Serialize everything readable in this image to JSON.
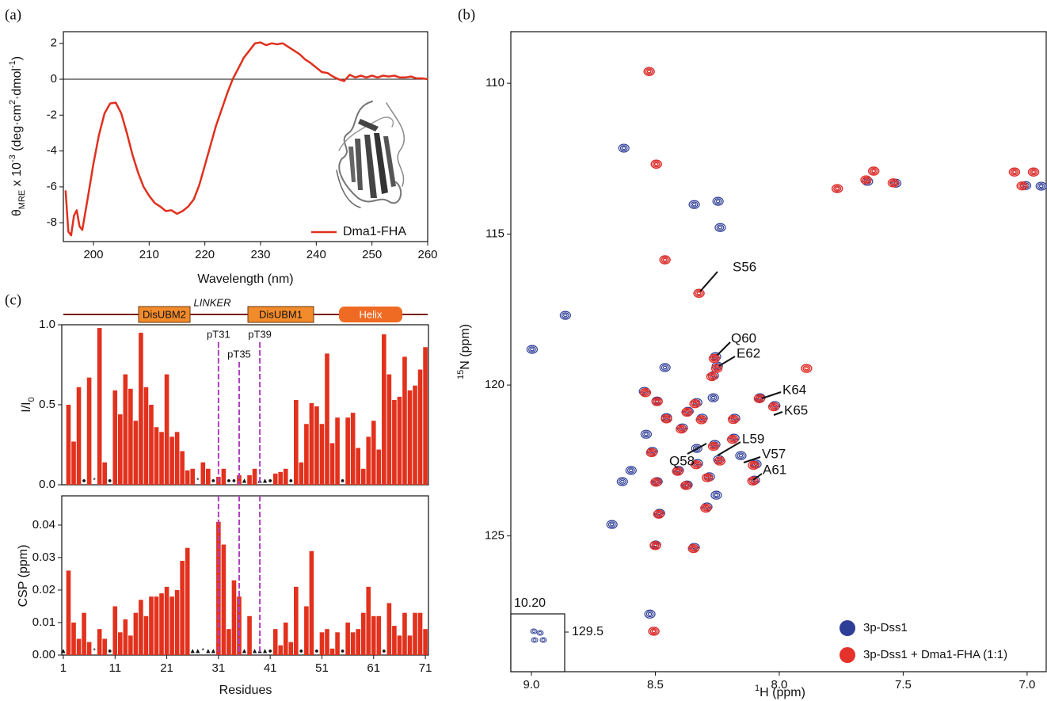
{
  "panel_labels": [
    "(a)",
    "(b)",
    "(c)"
  ],
  "domain_map": {
    "labels": [
      "DisUBM2",
      "LINKER",
      "DisUBM1",
      "Helix"
    ]
  },
  "chart_data": [
    {
      "type": "line",
      "x_label": [
        {
          "text": "Wavelength (nm)"
        }
      ],
      "y_label": [
        {
          "text": "θ"
        },
        {
          "text": "MRE",
          "shift": "sub"
        },
        {
          "text": " x 10"
        },
        {
          "text": "-3",
          "shift": "sup"
        },
        {
          "text": " (deg·cm"
        },
        {
          "text": "2",
          "shift": "sup"
        },
        {
          "text": "·dmol"
        },
        {
          "text": "-1",
          "shift": "sup"
        },
        {
          "text": ")"
        }
      ],
      "x": [
        195,
        195.5,
        196,
        196.5,
        197,
        197.5,
        198,
        199,
        200,
        201,
        202,
        203,
        204,
        205,
        206,
        207,
        208,
        209,
        210,
        211,
        212,
        213,
        214,
        215,
        216,
        217,
        218,
        219,
        220,
        221,
        222,
        223,
        224,
        225,
        226,
        227,
        228,
        229,
        230,
        231,
        232,
        233,
        234,
        235,
        236,
        237,
        238,
        239,
        240,
        241,
        242,
        243,
        244,
        245,
        246,
        247,
        248,
        249,
        250,
        251,
        252,
        253,
        254,
        255,
        256,
        257,
        258,
        259,
        260
      ],
      "series": [
        {
          "name": "Dma1-FHA",
          "color": "#e0301e",
          "values": [
            -6.2,
            -8.5,
            -8.7,
            -7.6,
            -7.3,
            -8.2,
            -8.4,
            -6.6,
            -4.7,
            -3.1,
            -1.9,
            -1.35,
            -1.3,
            -1.9,
            -3.0,
            -4.2,
            -5.2,
            -6.0,
            -6.5,
            -6.9,
            -7.1,
            -7.35,
            -7.3,
            -7.5,
            -7.35,
            -7.1,
            -6.7,
            -5.9,
            -4.8,
            -3.7,
            -2.6,
            -1.7,
            -0.8,
            0.0,
            0.6,
            1.2,
            1.6,
            2.0,
            2.05,
            1.9,
            2.0,
            1.95,
            2.0,
            1.8,
            1.6,
            1.4,
            1.1,
            0.9,
            0.65,
            0.4,
            0.35,
            0.15,
            0.0,
            -0.1,
            0.25,
            0.1,
            0.2,
            0.1,
            0.2,
            0.1,
            0.2,
            0.15,
            0.2,
            0.1,
            0.1,
            0.15,
            0.05,
            0.05,
            0.0
          ]
        }
      ],
      "xlim": [
        194.6,
        260
      ],
      "ylim": [
        -9.05,
        2.65
      ],
      "xticks": [
        200,
        210,
        220,
        230,
        240,
        250,
        260
      ],
      "yticks": [
        -8,
        -6,
        -4,
        -2,
        0,
        2
      ],
      "legend": "lower right"
    },
    {
      "type": "bar",
      "y_label": [
        {
          "text": "I/I"
        },
        {
          "text": "0",
          "shift": "sub"
        }
      ],
      "color": "#e2311d",
      "x": [
        1,
        2,
        3,
        4,
        5,
        6,
        7,
        8,
        9,
        10,
        11,
        12,
        13,
        14,
        15,
        16,
        17,
        18,
        19,
        20,
        21,
        22,
        23,
        24,
        25,
        26,
        27,
        28,
        29,
        30,
        31,
        32,
        33,
        34,
        35,
        36,
        37,
        38,
        39,
        40,
        41,
        42,
        43,
        44,
        45,
        46,
        47,
        48,
        49,
        50,
        51,
        52,
        53,
        54,
        55,
        56,
        57,
        58,
        59,
        60,
        61,
        62,
        63,
        64,
        65,
        66,
        67,
        68,
        69,
        70,
        71
      ],
      "values": [
        null,
        0.5,
        0.27,
        0.61,
        null,
        0.67,
        null,
        0.98,
        0.14,
        null,
        0.59,
        0.44,
        0.69,
        0.6,
        0.4,
        0.95,
        0.61,
        0.5,
        0.36,
        0.33,
        0.69,
        0.3,
        0.33,
        0.21,
        0.09,
        0.1,
        null,
        0.14,
        0.1,
        null,
        0.05,
        0.1,
        null,
        null,
        0.06,
        null,
        0.06,
        0.1,
        null,
        null,
        null,
        0.07,
        0.08,
        0.1,
        null,
        0.53,
        0.14,
        0.38,
        0.51,
        0.49,
        0.38,
        0.82,
        0.26,
        0.42,
        null,
        0.42,
        0.45,
        0.23,
        0.1,
        0.3,
        0.4,
        0.22,
        0.94,
        0.69,
        0.53,
        0.55,
        0.8,
        0.59,
        0.62,
        0.72,
        0.86
      ],
      "symbols": [
        null,
        null,
        null,
        null,
        "●",
        null,
        "*",
        null,
        null,
        "●",
        null,
        null,
        null,
        null,
        null,
        null,
        null,
        null,
        null,
        null,
        null,
        null,
        null,
        null,
        null,
        null,
        "*",
        null,
        null,
        "●",
        null,
        null,
        "●",
        "●",
        null,
        "▲",
        null,
        null,
        "▲",
        "▲",
        "●",
        null,
        null,
        null,
        "●",
        null,
        null,
        null,
        null,
        null,
        null,
        null,
        null,
        null,
        "●",
        null,
        null,
        null,
        null,
        null,
        null,
        null,
        null,
        null,
        null,
        null,
        null,
        null,
        null,
        null,
        null
      ],
      "annotations": [
        {
          "text": "pT31",
          "x": 31
        },
        {
          "text": "pT35",
          "x": 35
        },
        {
          "text": "pT39",
          "x": 39
        }
      ],
      "xlim": [
        0.7,
        71.6
      ],
      "ylim": [
        0,
        1.0
      ],
      "yticks": [
        {
          "value": 0,
          "label": "0.0"
        },
        0.5,
        {
          "value": 1,
          "label": "1.0"
        }
      ]
    },
    {
      "type": "bar",
      "x_label": [
        {
          "text": "Residues"
        }
      ],
      "y_label": [
        {
          "text": "CSP (ppm)"
        }
      ],
      "color": "#e2311d",
      "x": [
        1,
        2,
        3,
        4,
        5,
        6,
        7,
        8,
        9,
        10,
        11,
        12,
        13,
        14,
        15,
        16,
        17,
        18,
        19,
        20,
        21,
        22,
        23,
        24,
        25,
        26,
        27,
        28,
        29,
        30,
        31,
        32,
        33,
        34,
        35,
        36,
        37,
        38,
        39,
        40,
        41,
        42,
        43,
        44,
        45,
        46,
        47,
        48,
        49,
        50,
        51,
        52,
        53,
        54,
        55,
        56,
        57,
        58,
        59,
        60,
        61,
        62,
        63,
        64,
        65,
        66,
        67,
        68,
        69,
        70,
        71
      ],
      "values": [
        null,
        0.026,
        0.01,
        0.005,
        0.013,
        0.004,
        null,
        0.008,
        0.005,
        null,
        0.015,
        0.007,
        0.011,
        0.006,
        0.013,
        0.017,
        0.012,
        0.018,
        0.018,
        0.019,
        0.021,
        0.018,
        0.02,
        0.029,
        0.033,
        null,
        null,
        null,
        null,
        null,
        0.041,
        0.034,
        0.008,
        0.023,
        0.018,
        null,
        0.012,
        null,
        null,
        null,
        null,
        0.008,
        0.003,
        0.01,
        0.004,
        0.021,
        null,
        0.015,
        0.032,
        null,
        0.007,
        0.008,
        0.002,
        0.007,
        null,
        0.01,
        0.007,
        0.008,
        0.013,
        0.021,
        0.012,
        0.012,
        null,
        0.016,
        0.009,
        0.006,
        0.013,
        0.006,
        0.013,
        0.013,
        0.008
      ],
      "symbols": [
        "▲",
        null,
        null,
        null,
        null,
        null,
        "*",
        null,
        null,
        "●",
        null,
        null,
        null,
        null,
        null,
        null,
        null,
        null,
        null,
        null,
        null,
        null,
        null,
        null,
        null,
        "▲",
        "▲",
        "*",
        "▲",
        "▲",
        null,
        null,
        null,
        null,
        null,
        "▲",
        null,
        "▲",
        "▲",
        "▲",
        "●",
        null,
        null,
        null,
        null,
        null,
        "●",
        null,
        null,
        "●",
        null,
        null,
        null,
        null,
        "●",
        null,
        null,
        null,
        null,
        null,
        null,
        null,
        "●",
        null,
        null,
        null,
        null,
        null,
        null,
        null,
        null
      ],
      "xlim": [
        0.7,
        71.6
      ],
      "ylim": [
        0,
        0.049
      ],
      "xticks": [
        1,
        11,
        21,
        31,
        41,
        51,
        61,
        71
      ],
      "yticks": [
        {
          "value": 0,
          "label": "0.00"
        },
        0.01,
        0.02,
        0.03,
        0.04
      ]
    },
    {
      "type": "scatter",
      "x_label": [
        {
          "text": "1",
          "shift": "sup"
        },
        {
          "text": "H (ppm)"
        }
      ],
      "y_label": [
        {
          "text": "15",
          "shift": "sup"
        },
        {
          "text": "N (ppm)"
        }
      ],
      "series": [
        {
          "name": "3p-Dss1",
          "color": "#2e3d96",
          "x": [
            8.525,
            8.627,
            8.496,
            7.766,
            7.644,
            7.619,
            7.53,
            7.006,
            6.943,
            7.051,
            6.974,
            8.247,
            8.343,
            8.238,
            8.461,
            8.324,
            8.863,
            8.997,
            8.257,
            8.25,
            8.078,
            8.018,
            8.266,
            8.461,
            8.493,
            8.544,
            8.333,
            8.266,
            8.455,
            8.368,
            8.311,
            8.18,
            8.183,
            8.26,
            8.155,
            8.094,
            8.33,
            8.407,
            8.512,
            8.537,
            8.598,
            8.633,
            8.493,
            8.372,
            8.282,
            8.244,
            8.1,
            8.292,
            8.483,
            8.675,
            8.499,
            8.343,
            8.522,
            8.506,
            8.333,
            8.254,
            8.391
          ],
          "values": [
            109.61,
            112.15,
            112.68,
            113.49,
            113.25,
            112.91,
            113.31,
            113.39,
            113.41,
            112.94,
            112.94,
            113.91,
            114.02,
            114.78,
            115.85,
            116.96,
            117.69,
            118.82,
            119.06,
            119.37,
            120.42,
            120.68,
            119.69,
            119.42,
            120.53,
            120.21,
            120.58,
            120.42,
            121.08,
            120.87,
            121.1,
            121.1,
            121.76,
            121.97,
            122.34,
            122.62,
            122.6,
            122.83,
            122.2,
            121.63,
            122.83,
            123.2,
            123.2,
            123.31,
            123.04,
            122.47,
            123.15,
            124.04,
            124.25,
            124.62,
            125.3,
            125.38,
            127.59,
            128.16,
            122.1,
            123.65,
            121.42
          ]
        },
        {
          "name": "3p-Dss1 + Dma1-FHA (1:1)",
          "color": "#e5322b",
          "x": [
            8.525,
            8.496,
            7.766,
            7.65,
            7.619,
            7.54,
            7.02,
            7.051,
            6.974,
            8.461,
            8.324,
            8.262,
            8.252,
            7.89,
            8.08,
            8.022,
            8.272,
            8.493,
            8.54,
            8.34,
            8.455,
            8.372,
            8.314,
            8.185,
            8.188,
            8.265,
            8.104,
            8.335,
            8.41,
            8.515,
            8.497,
            8.376,
            8.29,
            8.106,
            8.296,
            8.486,
            8.5,
            8.346,
            8.506,
            8.24,
            8.395
          ],
          "values": [
            109.61,
            112.68,
            113.49,
            113.2,
            112.91,
            113.3,
            113.4,
            112.94,
            112.94,
            115.85,
            116.96,
            119.12,
            119.45,
            119.45,
            120.45,
            120.72,
            119.72,
            120.55,
            120.25,
            120.62,
            121.12,
            120.9,
            121.15,
            121.14,
            121.8,
            122.03,
            122.66,
            122.64,
            122.86,
            122.24,
            123.22,
            123.33,
            123.07,
            123.18,
            124.08,
            124.28,
            125.32,
            125.42,
            128.16,
            122.52,
            121.46
          ]
        }
      ],
      "annotations": [
        "S56",
        "Q60",
        "E62",
        "K64",
        "K65",
        "L59",
        "Q58",
        "V57",
        "A61"
      ],
      "inset": {
        "x_label": "10.20",
        "y_label": "129.5"
      },
      "xlim": [
        9.083,
        6.923
      ],
      "ylim": [
        129.5,
        108.29
      ],
      "xticks": [
        {
          "value": 9,
          "label": "9.0"
        },
        8.5,
        {
          "value": 8,
          "label": "8.0"
        },
        7.5,
        {
          "value": 7,
          "label": "7.0"
        }
      ],
      "yticks": [
        110,
        115,
        120,
        125
      ],
      "legend": "lower right"
    }
  ]
}
